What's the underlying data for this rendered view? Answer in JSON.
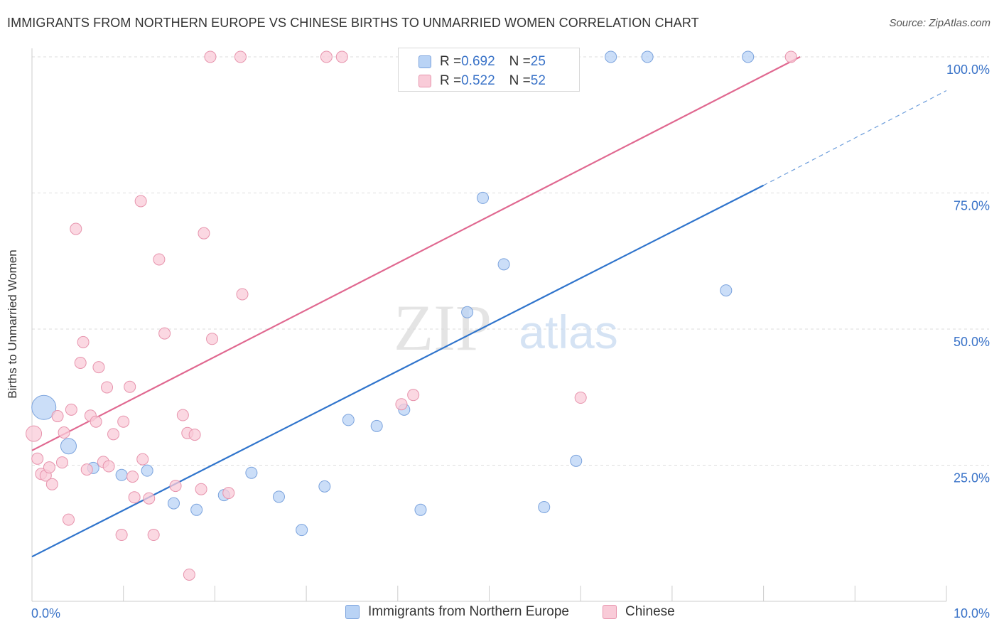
{
  "header": {
    "title": "IMMIGRANTS FROM NORTHERN EUROPE VS CHINESE BIRTHS TO UNMARRIED WOMEN CORRELATION CHART",
    "source": "Source: ZipAtlas.com"
  },
  "watermark": {
    "zip": "ZIP",
    "atlas": "atlas"
  },
  "legend": {
    "r_label": "R = ",
    "n_label": "N = ",
    "series": [
      {
        "name": "Immigrants from Northern Europe",
        "r": "0.692",
        "n": "25",
        "fill": "#b9d3f5",
        "stroke": "#7ba3dd"
      },
      {
        "name": "Chinese",
        "r": "0.522",
        "n": "52",
        "fill": "#f9cbd8",
        "stroke": "#e794ad"
      }
    ]
  },
  "chart_data": {
    "type": "scatter",
    "title": "IMMIGRANTS FROM NORTHERN EUROPE VS CHINESE BIRTHS TO UNMARRIED WOMEN CORRELATION CHART",
    "xlabel": "",
    "ylabel": "Births to Unmarried Women",
    "xlim": [
      0,
      10
    ],
    "ylim": [
      0,
      100
    ],
    "x_tick_labels": [
      "0.0%",
      "10.0%"
    ],
    "y_ticks": [
      25,
      50,
      75,
      100
    ],
    "y_tick_labels": [
      "25.0%",
      "50.0%",
      "75.0%",
      "100.0%"
    ],
    "grid": true,
    "colors": {
      "blue_point_fill": "#b9d3f5",
      "blue_point_stroke": "#7ba3dd",
      "blue_line": "#2f74cc",
      "pink_point_fill": "#f9cbd8",
      "pink_point_stroke": "#e794ad",
      "pink_line": "#e06890",
      "tick_label": "#3a73c8",
      "grid": "#dddddd"
    },
    "series": [
      {
        "name": "Immigrants from Northern Europe",
        "color": "blue",
        "points": [
          [
            0.13,
            35.6,
            3
          ],
          [
            0.4,
            28.5,
            2
          ],
          [
            0.67,
            24.5,
            1
          ],
          [
            0.98,
            23.2,
            1
          ],
          [
            1.26,
            24.0,
            1
          ],
          [
            1.55,
            18.0,
            1
          ],
          [
            1.8,
            16.8,
            1
          ],
          [
            2.1,
            19.5,
            1
          ],
          [
            2.4,
            23.6,
            1
          ],
          [
            2.7,
            19.2,
            1
          ],
          [
            2.95,
            13.1,
            1
          ],
          [
            3.2,
            21.1,
            1
          ],
          [
            3.46,
            33.3,
            1
          ],
          [
            3.77,
            32.2,
            1
          ],
          [
            4.07,
            35.2,
            1
          ],
          [
            4.25,
            16.8,
            1
          ],
          [
            4.76,
            53.1,
            1
          ],
          [
            4.93,
            74.1,
            1
          ],
          [
            5.16,
            61.9,
            1
          ],
          [
            5.6,
            17.3,
            1
          ],
          [
            5.95,
            25.8,
            1
          ],
          [
            6.33,
            100,
            1
          ],
          [
            6.73,
            100,
            1
          ],
          [
            7.59,
            57.1,
            1
          ],
          [
            7.83,
            100,
            1
          ]
        ],
        "trend": {
          "x0": 0,
          "y0": 8.2,
          "x1": 8.0,
          "y1": 76.4,
          "dashed_to_x": 10.0,
          "dashed_to_y": 93.8
        }
      },
      {
        "name": "Chinese",
        "color": "pink",
        "points": [
          [
            0.02,
            30.8,
            2
          ],
          [
            0.06,
            26.2,
            1
          ],
          [
            0.1,
            23.4,
            1
          ],
          [
            0.15,
            23.1,
            1
          ],
          [
            0.19,
            24.6,
            1
          ],
          [
            0.22,
            21.5,
            1
          ],
          [
            0.28,
            34.0,
            1
          ],
          [
            0.33,
            25.5,
            1
          ],
          [
            0.35,
            31.0,
            1
          ],
          [
            0.4,
            15.0,
            1
          ],
          [
            0.43,
            35.2,
            1
          ],
          [
            0.48,
            68.4,
            1
          ],
          [
            0.53,
            43.8,
            1
          ],
          [
            0.56,
            47.6,
            1
          ],
          [
            0.6,
            24.2,
            1
          ],
          [
            0.64,
            34.1,
            1
          ],
          [
            0.7,
            33.0,
            1
          ],
          [
            0.73,
            43.0,
            1
          ],
          [
            0.78,
            25.6,
            1
          ],
          [
            0.82,
            39.3,
            1
          ],
          [
            0.84,
            24.8,
            1
          ],
          [
            0.89,
            30.7,
            1
          ],
          [
            0.98,
            12.2,
            1
          ],
          [
            1.0,
            33.0,
            1
          ],
          [
            1.07,
            39.4,
            1
          ],
          [
            1.1,
            22.9,
            1
          ],
          [
            1.12,
            19.1,
            1
          ],
          [
            1.19,
            73.5,
            1
          ],
          [
            1.21,
            26.1,
            1
          ],
          [
            1.28,
            18.9,
            1
          ],
          [
            1.33,
            12.2,
            1
          ],
          [
            1.39,
            62.8,
            1
          ],
          [
            1.45,
            49.2,
            1
          ],
          [
            1.57,
            21.2,
            1
          ],
          [
            1.65,
            34.2,
            1
          ],
          [
            1.7,
            30.9,
            1
          ],
          [
            1.72,
            4.9,
            1
          ],
          [
            1.78,
            30.6,
            1
          ],
          [
            1.85,
            20.6,
            1
          ],
          [
            1.88,
            67.6,
            1
          ],
          [
            1.95,
            100,
            1
          ],
          [
            1.97,
            48.2,
            1
          ],
          [
            2.15,
            19.9,
            1
          ],
          [
            2.28,
            100,
            1
          ],
          [
            2.3,
            56.4,
            1
          ],
          [
            3.22,
            100,
            1
          ],
          [
            3.39,
            100,
            1
          ],
          [
            4.04,
            36.2,
            1
          ],
          [
            4.17,
            37.9,
            1
          ],
          [
            4.5,
            100,
            1
          ],
          [
            6.0,
            37.4,
            1
          ],
          [
            8.3,
            100,
            1
          ]
        ],
        "trend": {
          "x0": 0,
          "y0": 27.7,
          "x1": 8.4,
          "y1": 100
        }
      }
    ]
  }
}
